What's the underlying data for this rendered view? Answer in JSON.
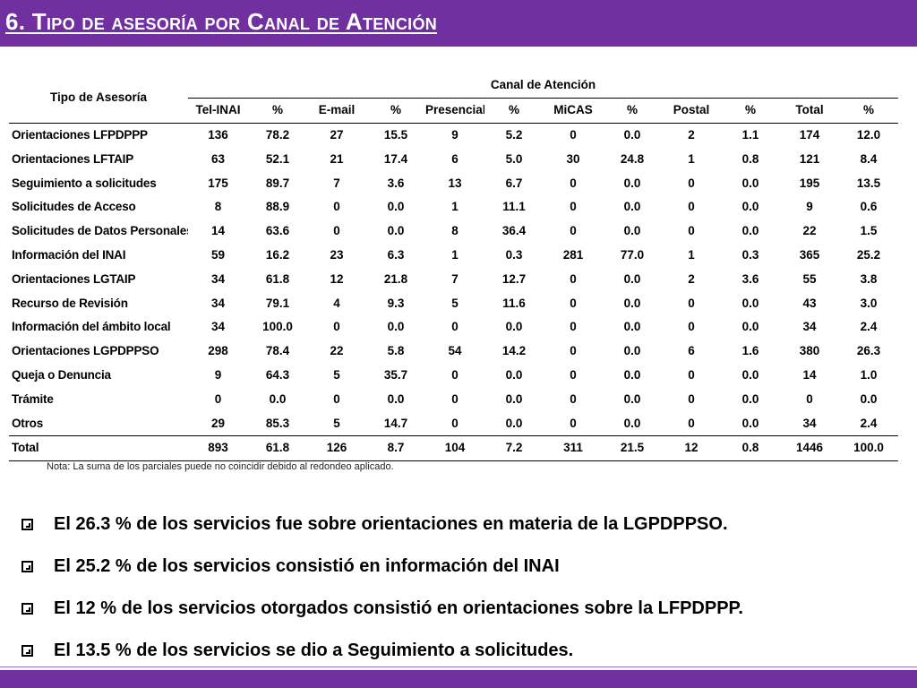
{
  "title": "6. Tipo de asesoría por Canal de Atención",
  "colors": {
    "accent": "#7030a0"
  },
  "table": {
    "corner_header": "Tipo de Asesoría",
    "group_header": "Canal de Atención",
    "columns": [
      "Tel-INAI",
      "%",
      "E-mail",
      "%",
      "Presencial",
      "%",
      "MiCAS",
      "%",
      "Postal",
      "%",
      "Total",
      "%"
    ],
    "rows": [
      {
        "label": "Orientaciones LFPDPPP",
        "values": [
          "136",
          "78.2",
          "27",
          "15.5",
          "9",
          "5.2",
          "0",
          "0.0",
          "2",
          "1.1",
          "174",
          "12.0"
        ]
      },
      {
        "label": "Orientaciones LFTAIP",
        "values": [
          "63",
          "52.1",
          "21",
          "17.4",
          "6",
          "5.0",
          "30",
          "24.8",
          "1",
          "0.8",
          "121",
          "8.4"
        ]
      },
      {
        "label": "Seguimiento a solicitudes",
        "values": [
          "175",
          "89.7",
          "7",
          "3.6",
          "13",
          "6.7",
          "0",
          "0.0",
          "0",
          "0.0",
          "195",
          "13.5"
        ]
      },
      {
        "label": "Solicitudes de Acceso",
        "values": [
          "8",
          "88.9",
          "0",
          "0.0",
          "1",
          "11.1",
          "0",
          "0.0",
          "0",
          "0.0",
          "9",
          "0.6"
        ]
      },
      {
        "label": "Solicitudes de Datos Personales",
        "values": [
          "14",
          "63.6",
          "0",
          "0.0",
          "8",
          "36.4",
          "0",
          "0.0",
          "0",
          "0.0",
          "22",
          "1.5"
        ]
      },
      {
        "label": "Información del INAI",
        "values": [
          "59",
          "16.2",
          "23",
          "6.3",
          "1",
          "0.3",
          "281",
          "77.0",
          "1",
          "0.3",
          "365",
          "25.2"
        ]
      },
      {
        "label": "Orientaciones LGTAIP",
        "values": [
          "34",
          "61.8",
          "12",
          "21.8",
          "7",
          "12.7",
          "0",
          "0.0",
          "2",
          "3.6",
          "55",
          "3.8"
        ]
      },
      {
        "label": "Recurso de Revisión",
        "values": [
          "34",
          "79.1",
          "4",
          "9.3",
          "5",
          "11.6",
          "0",
          "0.0",
          "0",
          "0.0",
          "43",
          "3.0"
        ]
      },
      {
        "label": "Información del ámbito local",
        "values": [
          "34",
          "100.0",
          "0",
          "0.0",
          "0",
          "0.0",
          "0",
          "0.0",
          "0",
          "0.0",
          "34",
          "2.4"
        ]
      },
      {
        "label": "Orientaciones LGPDPPSO",
        "values": [
          "298",
          "78.4",
          "22",
          "5.8",
          "54",
          "14.2",
          "0",
          "0.0",
          "6",
          "1.6",
          "380",
          "26.3"
        ]
      },
      {
        "label": "Queja o Denuncia",
        "values": [
          "9",
          "64.3",
          "5",
          "35.7",
          "0",
          "0.0",
          "0",
          "0.0",
          "0",
          "0.0",
          "14",
          "1.0"
        ]
      },
      {
        "label": "Trámite",
        "values": [
          "0",
          "0.0",
          "0",
          "0.0",
          "0",
          "0.0",
          "0",
          "0.0",
          "0",
          "0.0",
          "0",
          "0.0"
        ]
      },
      {
        "label": "Otros",
        "values": [
          "29",
          "85.3",
          "5",
          "14.7",
          "0",
          "0.0",
          "0",
          "0.0",
          "0",
          "0.0",
          "34",
          "2.4"
        ]
      }
    ],
    "total": {
      "label": "Total",
      "values": [
        "893",
        "61.8",
        "126",
        "8.7",
        "104",
        "7.2",
        "311",
        "21.5",
        "12",
        "0.8",
        "1446",
        "100.0"
      ]
    }
  },
  "note": "Nota: La suma de los parciales puede no coincidir debido al redondeo aplicado.",
  "bullets": [
    "El 26.3 % de los servicios fue sobre orientaciones en materia de la LGPDPPSO.",
    "El 25.2 % de los servicios consistió en información del INAI",
    "El 12 % de los servicios otorgados consistió en orientaciones sobre la LFPDPPP.",
    "El 13.5 % de los servicios se dio a Seguimiento a solicitudes."
  ]
}
